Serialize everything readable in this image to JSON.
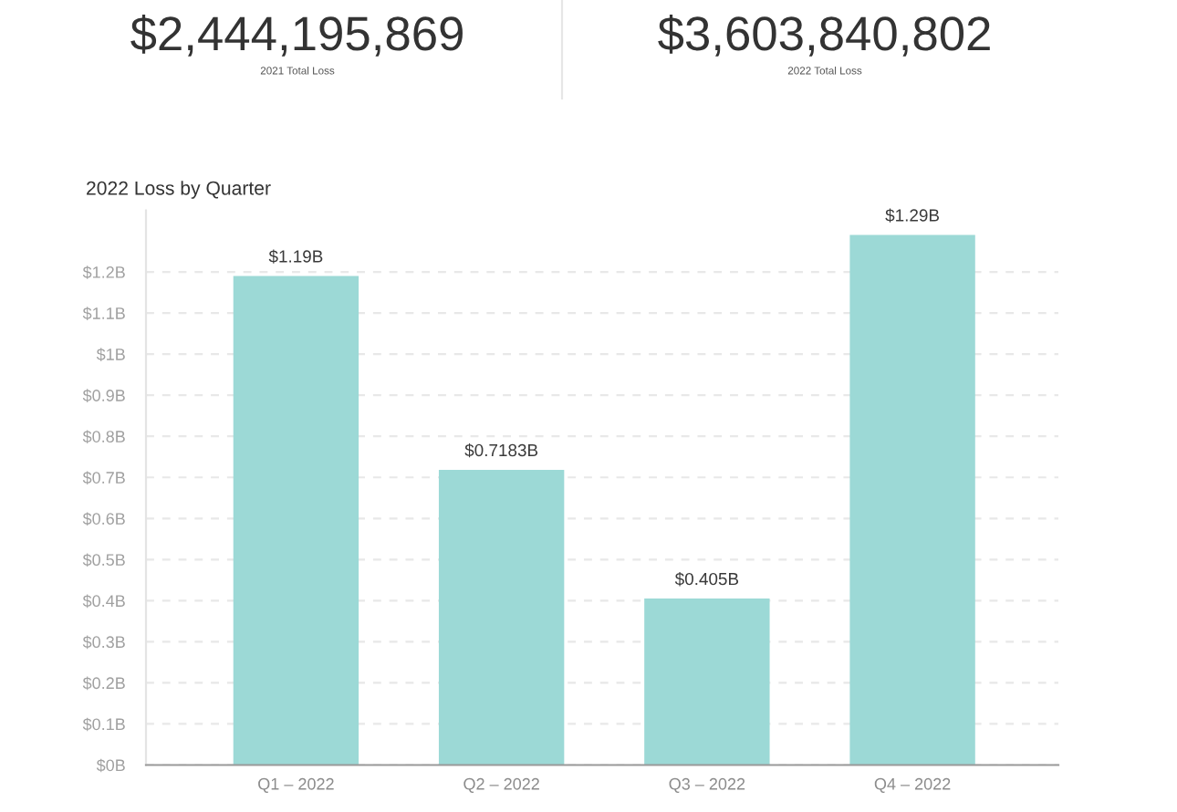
{
  "chart_data": [
    {
      "type": "other",
      "title": "$2,444,195,869",
      "subtitle": "2021 Total Loss"
    },
    {
      "type": "other",
      "title": "$3,603,840,802",
      "subtitle": "2022 Total Loss"
    },
    {
      "type": "bar",
      "title": "2022 Loss by Quarter",
      "categories": [
        "Q1 – 2022",
        "Q2 – 2022",
        "Q3 – 2022",
        "Q4 – 2022"
      ],
      "values": [
        1.19,
        0.7183,
        0.405,
        1.29
      ],
      "value_labels": [
        "$1.19B",
        "$0.7183B",
        "$0.405B",
        "$1.29B"
      ],
      "color": "#9cd9d6",
      "ylim": [
        0,
        1.35
      ],
      "yticks": [
        {
          "value": 0,
          "label": "$0B"
        },
        {
          "value": 0.1,
          "label": "$0.1B"
        },
        {
          "value": 0.2,
          "label": "$0.2B"
        },
        {
          "value": 0.3,
          "label": "$0.3B"
        },
        {
          "value": 0.4,
          "label": "$0.4B"
        },
        {
          "value": 0.5,
          "label": "$0.5B"
        },
        {
          "value": 0.6,
          "label": "$0.6B"
        },
        {
          "value": 0.7,
          "label": "$0.7B"
        },
        {
          "value": 0.8,
          "label": "$0.8B"
        },
        {
          "value": 0.9,
          "label": "$0.9B"
        },
        {
          "value": 1,
          "label": "$1B"
        },
        {
          "value": 1.1,
          "label": "$1.1B"
        },
        {
          "value": 1.2,
          "label": "$1.2B"
        }
      ],
      "grid": "y"
    }
  ]
}
